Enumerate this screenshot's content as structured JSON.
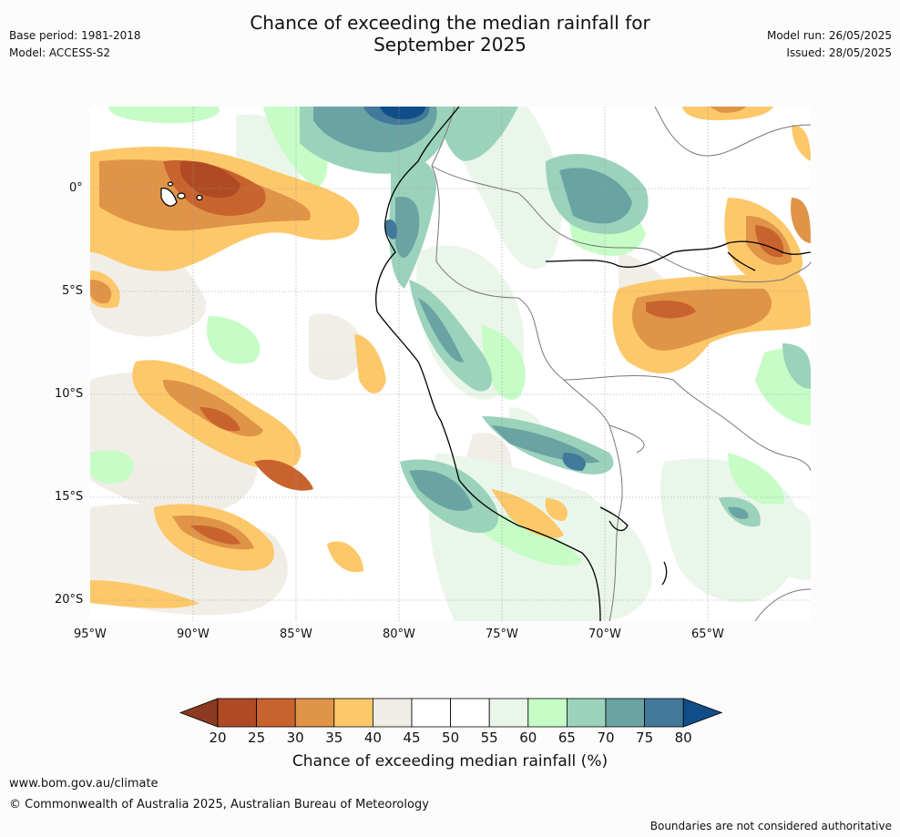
{
  "header": {
    "title_line1": "Chance of exceeding the median rainfall for",
    "title_line2": "September 2025",
    "base_period": "Base period: 1981-2018",
    "model": "Model: ACCESS-S2",
    "model_run": "Model run: 26/05/2025",
    "issued": "Issued: 28/05/2025"
  },
  "map": {
    "lon_range": [
      -95,
      -60
    ],
    "lat_range": [
      -21,
      4
    ],
    "lat_ticks": [
      "0°",
      "5°S",
      "10°S",
      "15°S",
      "20°S"
    ],
    "lon_ticks": [
      "95°W",
      "90°W",
      "85°W",
      "80°W",
      "75°W",
      "70°W",
      "65°W"
    ],
    "gridlines": true
  },
  "colorbar": {
    "labels": [
      "20",
      "25",
      "30",
      "35",
      "40",
      "45",
      "50",
      "55",
      "60",
      "65",
      "70",
      "75",
      "80"
    ],
    "colors": [
      "#8b3a1f",
      "#b04a24",
      "#c8632e",
      "#e09448",
      "#fdc86a",
      "#f0ede6",
      "#ffffff",
      "#ffffff",
      "#eaf6ea",
      "#c6fcc6",
      "#9bd2bb",
      "#6aa3a3",
      "#42799a",
      "#114d88"
    ],
    "title": "Chance of exceeding median rainfall (%)"
  },
  "footer": {
    "website": "www.bom.gov.au/climate",
    "copyright": "© Commonwealth of Australia 2025, Australian Bureau of Meteorology",
    "disclaimer": "Boundaries are not considered authoritative"
  }
}
